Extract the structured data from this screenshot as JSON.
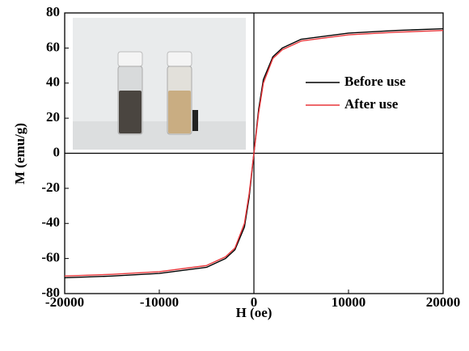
{
  "chart_data": {
    "type": "line",
    "x_label": "H (oe)",
    "y_label": "M (emu/g)",
    "x": [
      -20000,
      -15000,
      -10000,
      -5000,
      -3000,
      -2000,
      -1000,
      -500,
      0,
      500,
      1000,
      2000,
      3000,
      5000,
      10000,
      15000,
      20000
    ],
    "series": [
      {
        "name": "Before use",
        "color": "#000000",
        "values": [
          -71,
          -70,
          -68.5,
          -65,
          -60,
          -55,
          -42,
          -25,
          0,
          25,
          42,
          55,
          60,
          65,
          68.5,
          70,
          71
        ]
      },
      {
        "name": "After use",
        "color": "#e8363a",
        "values": [
          -70,
          -69,
          -67.5,
          -64,
          -59,
          -54,
          -40,
          -23,
          0,
          23,
          40,
          54,
          59,
          64,
          67.5,
          69,
          70
        ]
      }
    ],
    "xlim": [
      -20000,
      20000
    ],
    "ylim": [
      -80,
      80
    ],
    "xticks": [
      -20000,
      -10000,
      0,
      10000,
      20000
    ],
    "yticks": [
      -80,
      -60,
      -40,
      -20,
      0,
      20,
      40,
      60,
      80
    ],
    "legend": "upper right"
  }
}
